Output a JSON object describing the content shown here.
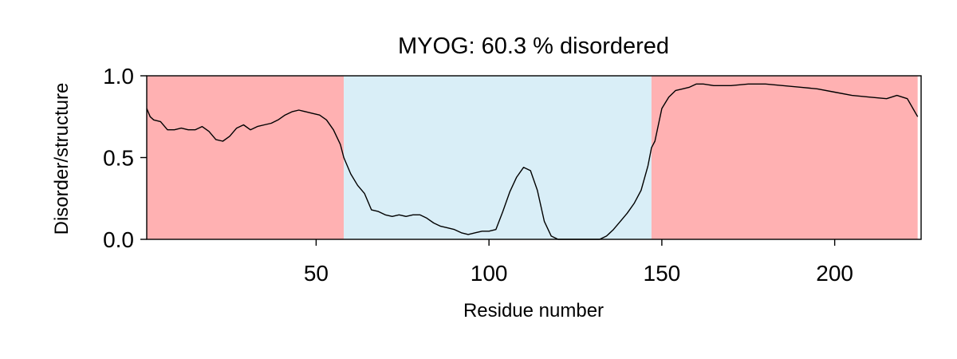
{
  "chart_data": {
    "type": "line",
    "title": "MYOG: 60.3 % disordered",
    "xlabel": "Residue number",
    "ylabel": "Disorder/structure",
    "xlim": [
      1,
      225
    ],
    "ylim": [
      0,
      1
    ],
    "xticks": [
      50,
      100,
      150,
      200
    ],
    "yticks": [
      0.0,
      0.5,
      1.0
    ],
    "xtick_labels": [
      "50",
      "100",
      "150",
      "200"
    ],
    "ytick_labels": [
      "0.0",
      "0.5",
      "1.0"
    ],
    "regions": [
      {
        "start": 1,
        "end": 58,
        "kind": "disordered",
        "color": "#ffb1b2"
      },
      {
        "start": 58,
        "end": 147,
        "kind": "structured",
        "color": "#d9eef7"
      },
      {
        "start": 147,
        "end": 224,
        "kind": "disordered",
        "color": "#ffb1b2"
      }
    ],
    "series": [
      {
        "name": "disorder",
        "color": "#000000",
        "x": [
          1,
          2,
          3,
          5,
          7,
          9,
          11,
          13,
          15,
          17,
          19,
          21,
          23,
          25,
          27,
          29,
          31,
          33,
          35,
          37,
          39,
          41,
          43,
          45,
          47,
          49,
          51,
          53,
          55,
          57,
          58,
          60,
          62,
          64,
          66,
          68,
          70,
          72,
          74,
          76,
          78,
          80,
          82,
          84,
          86,
          88,
          90,
          92,
          94,
          96,
          98,
          100,
          102,
          104,
          106,
          108,
          110,
          112,
          114,
          116,
          118,
          120,
          122,
          124,
          126,
          128,
          130,
          132,
          134,
          136,
          138,
          140,
          142,
          144,
          146,
          147,
          148,
          150,
          152,
          154,
          156,
          158,
          160,
          162,
          165,
          170,
          175,
          180,
          185,
          190,
          195,
          200,
          205,
          210,
          215,
          218,
          221,
          224
        ],
        "y": [
          0.8,
          0.75,
          0.73,
          0.72,
          0.67,
          0.67,
          0.68,
          0.67,
          0.67,
          0.69,
          0.66,
          0.61,
          0.6,
          0.63,
          0.68,
          0.7,
          0.67,
          0.69,
          0.7,
          0.71,
          0.73,
          0.76,
          0.78,
          0.79,
          0.78,
          0.77,
          0.76,
          0.73,
          0.67,
          0.58,
          0.5,
          0.4,
          0.33,
          0.28,
          0.18,
          0.17,
          0.15,
          0.14,
          0.15,
          0.14,
          0.15,
          0.15,
          0.13,
          0.1,
          0.08,
          0.07,
          0.06,
          0.04,
          0.03,
          0.04,
          0.05,
          0.05,
          0.06,
          0.17,
          0.29,
          0.38,
          0.44,
          0.42,
          0.3,
          0.11,
          0.02,
          0.0,
          0.0,
          0.0,
          0.0,
          0.0,
          0.0,
          0.0,
          0.02,
          0.06,
          0.11,
          0.16,
          0.22,
          0.3,
          0.45,
          0.56,
          0.6,
          0.8,
          0.87,
          0.91,
          0.92,
          0.93,
          0.95,
          0.95,
          0.94,
          0.94,
          0.95,
          0.95,
          0.94,
          0.93,
          0.92,
          0.9,
          0.88,
          0.87,
          0.86,
          0.88,
          0.86,
          0.75
        ]
      }
    ]
  }
}
